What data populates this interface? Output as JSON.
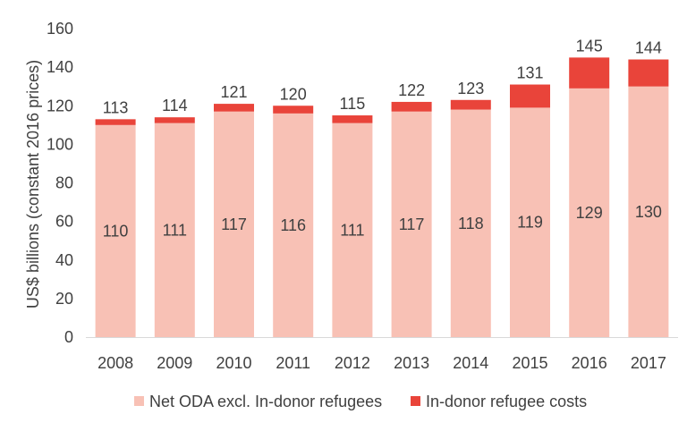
{
  "chart_data": {
    "type": "bar",
    "stacked": true,
    "categories": [
      "2008",
      "2009",
      "2010",
      "2011",
      "2012",
      "2013",
      "2014",
      "2015",
      "2016",
      "2017"
    ],
    "series": [
      {
        "name": "Net ODA excl. In-donor refugees",
        "color": "#f8c1b5",
        "values": [
          110,
          111,
          117,
          116,
          111,
          117,
          118,
          119,
          129,
          130
        ],
        "labels": [
          "110",
          "111",
          "117",
          "116",
          "111",
          "117",
          "118",
          "119",
          "129",
          "130"
        ]
      },
      {
        "name": "In-donor refugee costs",
        "color": "#e9443a",
        "values": [
          3,
          3,
          4,
          4,
          4,
          5,
          5,
          12,
          16,
          14
        ]
      }
    ],
    "totals": [
      "113",
      "114",
      "121",
      "120",
      "115",
      "122",
      "123",
      "131",
      "145",
      "144"
    ],
    "title": "",
    "xlabel": "",
    "ylabel": "US$ billions (constant 2016 prices)",
    "ylim": [
      0,
      160
    ],
    "yticks": [
      "0",
      "20",
      "40",
      "60",
      "80",
      "100",
      "120",
      "140",
      "160"
    ],
    "grid": false,
    "legend_position": "bottom"
  }
}
